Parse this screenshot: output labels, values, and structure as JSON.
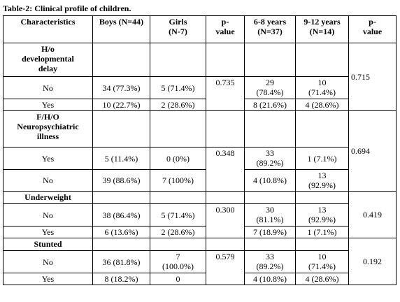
{
  "caption": "Table-2: Clinical profile of children.",
  "headers": {
    "characteristics": "Characteristics",
    "boys": "Boys (N=44)",
    "girls_1": "Girls",
    "girls_2": "(N-7)",
    "pvalue_1a": "p-",
    "pvalue_1b": "value",
    "age68_1": "6-8 years",
    "age68_2": "(N=37)",
    "age912_1": "9-12 years",
    "age912_2": "(N=14)",
    "pvalue_2a": "p-",
    "pvalue_2b": "value"
  },
  "sections": {
    "developmental": {
      "label_1": "H/o",
      "label_2": "developmental",
      "label_3": "delay",
      "p_age": "0.715",
      "rows": [
        {
          "label": "No",
          "boys": "34 (77.3%)",
          "girls": "5 (71.4%)",
          "p_gender": "0.735",
          "age68_a": "29",
          "age68_b": "(78.4%)",
          "age912_a": "10",
          "age912_b": "(71.4%)"
        },
        {
          "label": "Yes",
          "boys": "10 (22.7%)",
          "girls": "2 (28.6%)",
          "age68": "8 (21.6%)",
          "age912": "4 (28.6%)"
        }
      ]
    },
    "neuro": {
      "label_1": "F/H/O",
      "label_2": "Neuropsychiatric",
      "label_3": "illness",
      "p_age": "0.694",
      "rows": [
        {
          "label": "Yes",
          "boys": "5 (11.4%)",
          "girls": "0 (0%)",
          "p_gender": "0.348",
          "age68_a": "33",
          "age68_b": "(89.2%)",
          "age912": "1 (7.1%)"
        },
        {
          "label": "No",
          "boys": "39 (88.6%)",
          "girls": "7 (100%)",
          "age68": "4 (10.8%)",
          "age912_a": "13",
          "age912_b": "(92.9%)"
        }
      ]
    },
    "underweight": {
      "label": "Underweight",
      "p_age": "0.419",
      "rows": [
        {
          "label": "No",
          "boys": "38 (86.4%)",
          "girls": "5 (71.4%)",
          "p_gender": "0.300",
          "age68_a": "30",
          "age68_b": "(81.1%)",
          "age912_a": "13",
          "age912_b": "(92.9%)"
        },
        {
          "label": "Yes",
          "boys": "6 (13.6%)",
          "girls": "2 (28.6%)",
          "age68": "7 (18.9%)",
          "age912": "1 (7.1%)"
        }
      ]
    },
    "stunted": {
      "label": "Stunted",
      "p_age": "0.192",
      "rows": [
        {
          "label": "No",
          "boys": "36 (81.8%)",
          "girls_a": "7",
          "girls_b": "(100.0%)",
          "p_gender": "0.579",
          "age68_a": "33",
          "age68_b": "(89.2%)",
          "age912_a": "10",
          "age912_b": "(71.4%)"
        },
        {
          "label": "Yes",
          "boys": "8 (18.2%)",
          "girls": "0",
          "age68": "4 (10.8%)",
          "age912": "4 (28.6%)"
        }
      ]
    }
  }
}
